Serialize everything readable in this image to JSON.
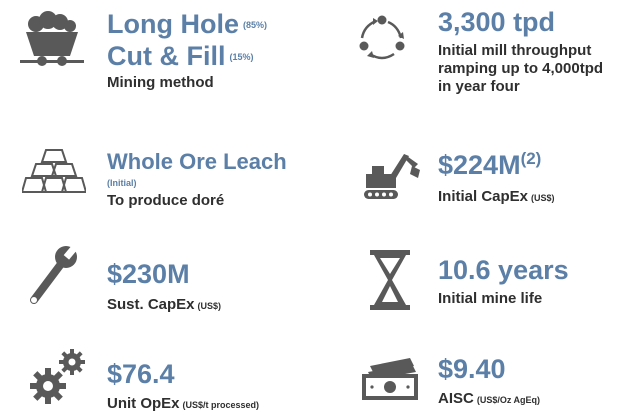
{
  "colors": {
    "accent": "#5b7fa6",
    "text": "#2f2f2f",
    "icon": "#595959"
  },
  "items": [
    {
      "icon": "mine-cart-icon",
      "head1": "Long Hole",
      "head1_small": "(85%)",
      "head2": "Cut & Fill",
      "head2_small": "(15%)",
      "sub": "Mining method"
    },
    {
      "icon": "cycle-icon",
      "head": "3,300 tpd",
      "sub1": "Initial mill throughput",
      "sub2": "ramping up to 4,000tpd",
      "sub3": "in year four"
    },
    {
      "icon": "gold-bars-icon",
      "head": "Whole Ore Leach",
      "note": "(Initial)",
      "sub": "To produce doré"
    },
    {
      "icon": "excavator-icon",
      "head": "$224M",
      "head_sup": "(2)",
      "sub": "Initial CapEx",
      "sub_unit": "(US$)"
    },
    {
      "icon": "wrench-icon",
      "head": "$230M",
      "sub": "Sust. CapEx",
      "sub_unit": "(US$)"
    },
    {
      "icon": "hourglass-icon",
      "head": "10.6 years",
      "sub": "Initial mine life"
    },
    {
      "icon": "gears-icon",
      "head": "$76.4",
      "sub": "Unit OpEx",
      "sub_unit": "(US$/t processed)"
    },
    {
      "icon": "banknotes-icon",
      "head": "$9.40",
      "sub": "AISC",
      "sub_unit": "(US$/Oz AgEq)"
    }
  ]
}
